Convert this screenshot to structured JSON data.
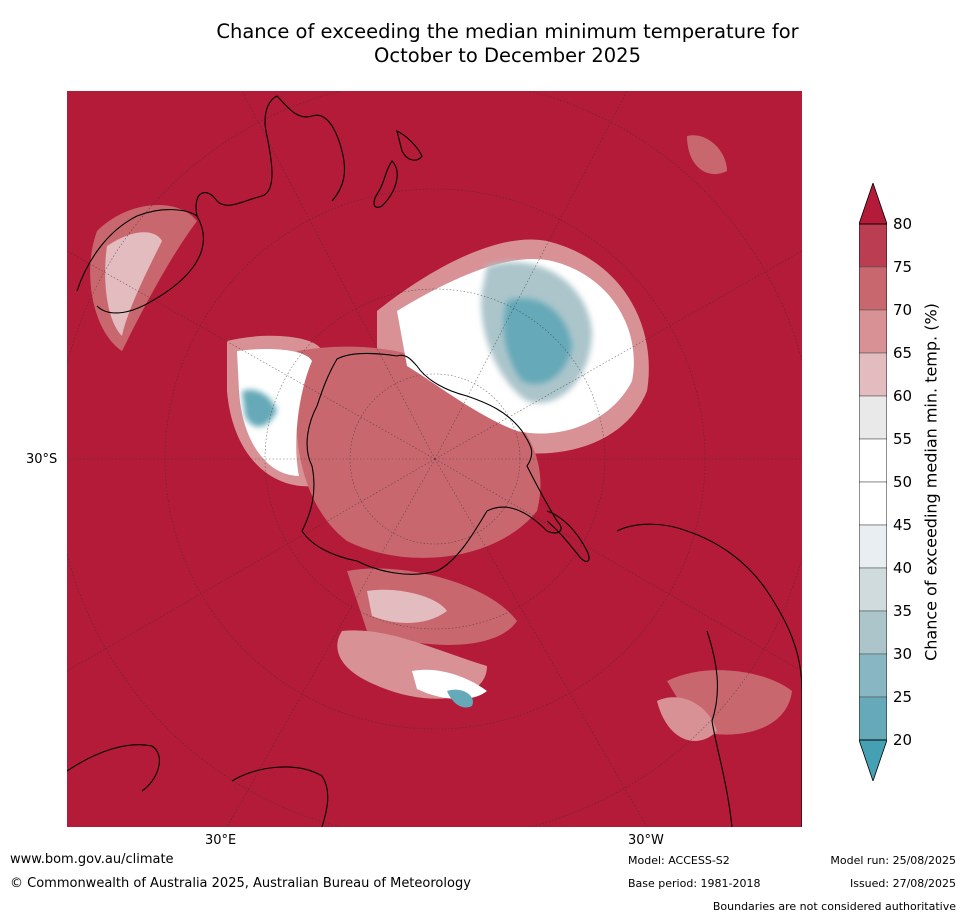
{
  "title": {
    "line1": "Chance of exceeding the median minimum temperature for",
    "line2": "October to December 2025"
  },
  "map": {
    "latitude_label": "30°S",
    "longitude_labels": [
      "30°E",
      "30°W"
    ],
    "projection": "south polar stereographic",
    "features": [
      "Antarctica",
      "Australia",
      "New Zealand",
      "South America",
      "Africa",
      "Madagascar"
    ]
  },
  "legend": {
    "title": "Chance of exceeding median min. temp. (%)",
    "ticks": [
      "80",
      "75",
      "70",
      "65",
      "60",
      "55",
      "50",
      "45",
      "40",
      "35",
      "30",
      "25",
      "20"
    ],
    "colors": [
      "#b31b38",
      "#ba3d51",
      "#c9676f",
      "#d89296",
      "#e2bcbe",
      "#e9e9e9",
      "#ffffff",
      "#ffffff",
      "#e8eef1",
      "#d0dbde",
      "#abc5cb",
      "#88b7c3",
      "#66a9b8",
      "#45a0b4"
    ],
    "extend": "both"
  },
  "footer": {
    "url": "www.bom.gov.au/climate",
    "copyright": "© Commonwealth of Australia 2025, Australian Bureau of Meteorology",
    "model": "Model: ACCESS-S2",
    "base_period": "Base period: 1981-2018",
    "model_run": "Model run: 25/08/2025",
    "issued": "Issued: 27/08/2025",
    "disclaimer": "Boundaries are not considered authoritative"
  }
}
